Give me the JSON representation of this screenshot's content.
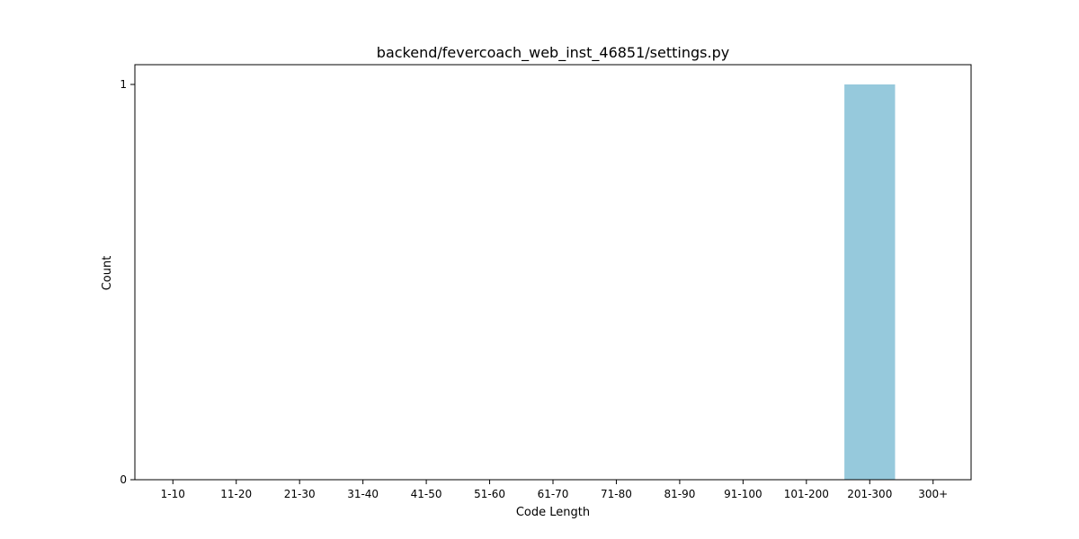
{
  "chart_data": {
    "type": "bar",
    "title": "backend/fevercoach_web_inst_46851/settings.py",
    "xlabel": "Code Length",
    "ylabel": "Count",
    "categories": [
      "1-10",
      "11-20",
      "21-30",
      "31-40",
      "41-50",
      "51-60",
      "61-70",
      "71-80",
      "81-90",
      "91-100",
      "101-200",
      "201-300",
      "300+"
    ],
    "values": [
      0,
      0,
      0,
      0,
      0,
      0,
      0,
      0,
      0,
      0,
      0,
      1,
      0
    ],
    "ylim": [
      0,
      1.05
    ],
    "yticks": [
      0,
      1
    ],
    "bar_color": "#96c9dc",
    "grid": false,
    "legend": "none"
  }
}
